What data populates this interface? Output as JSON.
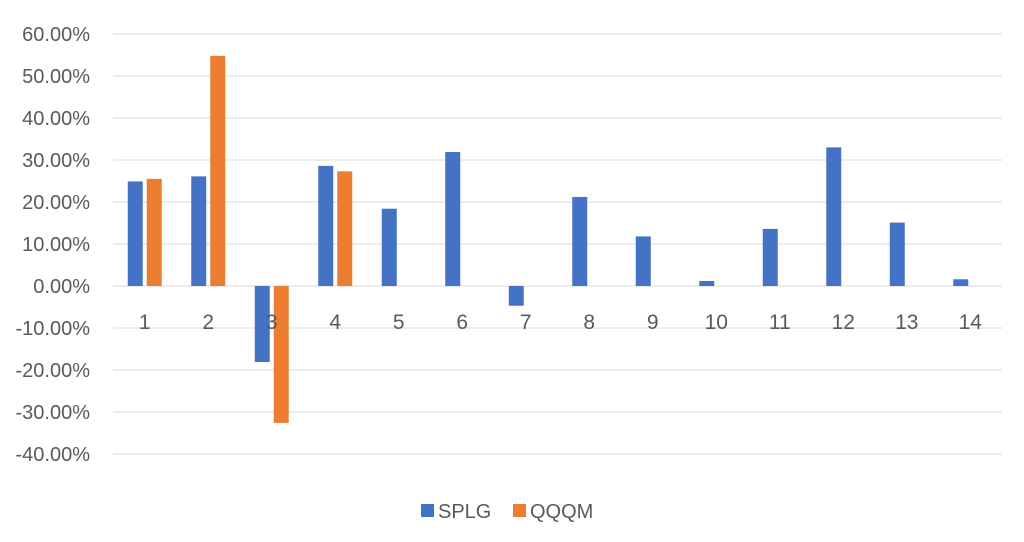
{
  "chart_data": {
    "type": "bar",
    "title": "",
    "xlabel": "",
    "ylabel": "",
    "categories": [
      "1",
      "2",
      "3",
      "4",
      "5",
      "6",
      "7",
      "8",
      "9",
      "10",
      "11",
      "12",
      "13",
      "14"
    ],
    "ylim": [
      -40,
      60
    ],
    "yticks": [
      60,
      50,
      40,
      30,
      20,
      10,
      0,
      -10,
      -20,
      -30,
      -40
    ],
    "ytick_labels": [
      "60.00%",
      "50.00%",
      "40.00%",
      "30.00%",
      "20.00%",
      "10.00%",
      "0.00%",
      "-10.00%",
      "-20.00%",
      "-30.00%",
      "-40.00%"
    ],
    "grid": true,
    "legend_position": "bottom",
    "series": [
      {
        "name": "SPLG",
        "color": "#4472C4",
        "values": [
          24.9,
          26.1,
          -18.1,
          28.6,
          18.4,
          31.9,
          -4.7,
          21.2,
          11.8,
          1.2,
          13.6,
          33.0,
          15.1,
          1.6
        ]
      },
      {
        "name": "QQQM",
        "color": "#ED7D31",
        "values": [
          25.5,
          54.8,
          -32.6,
          27.3,
          null,
          null,
          null,
          null,
          null,
          null,
          null,
          null,
          null,
          null
        ]
      }
    ]
  }
}
